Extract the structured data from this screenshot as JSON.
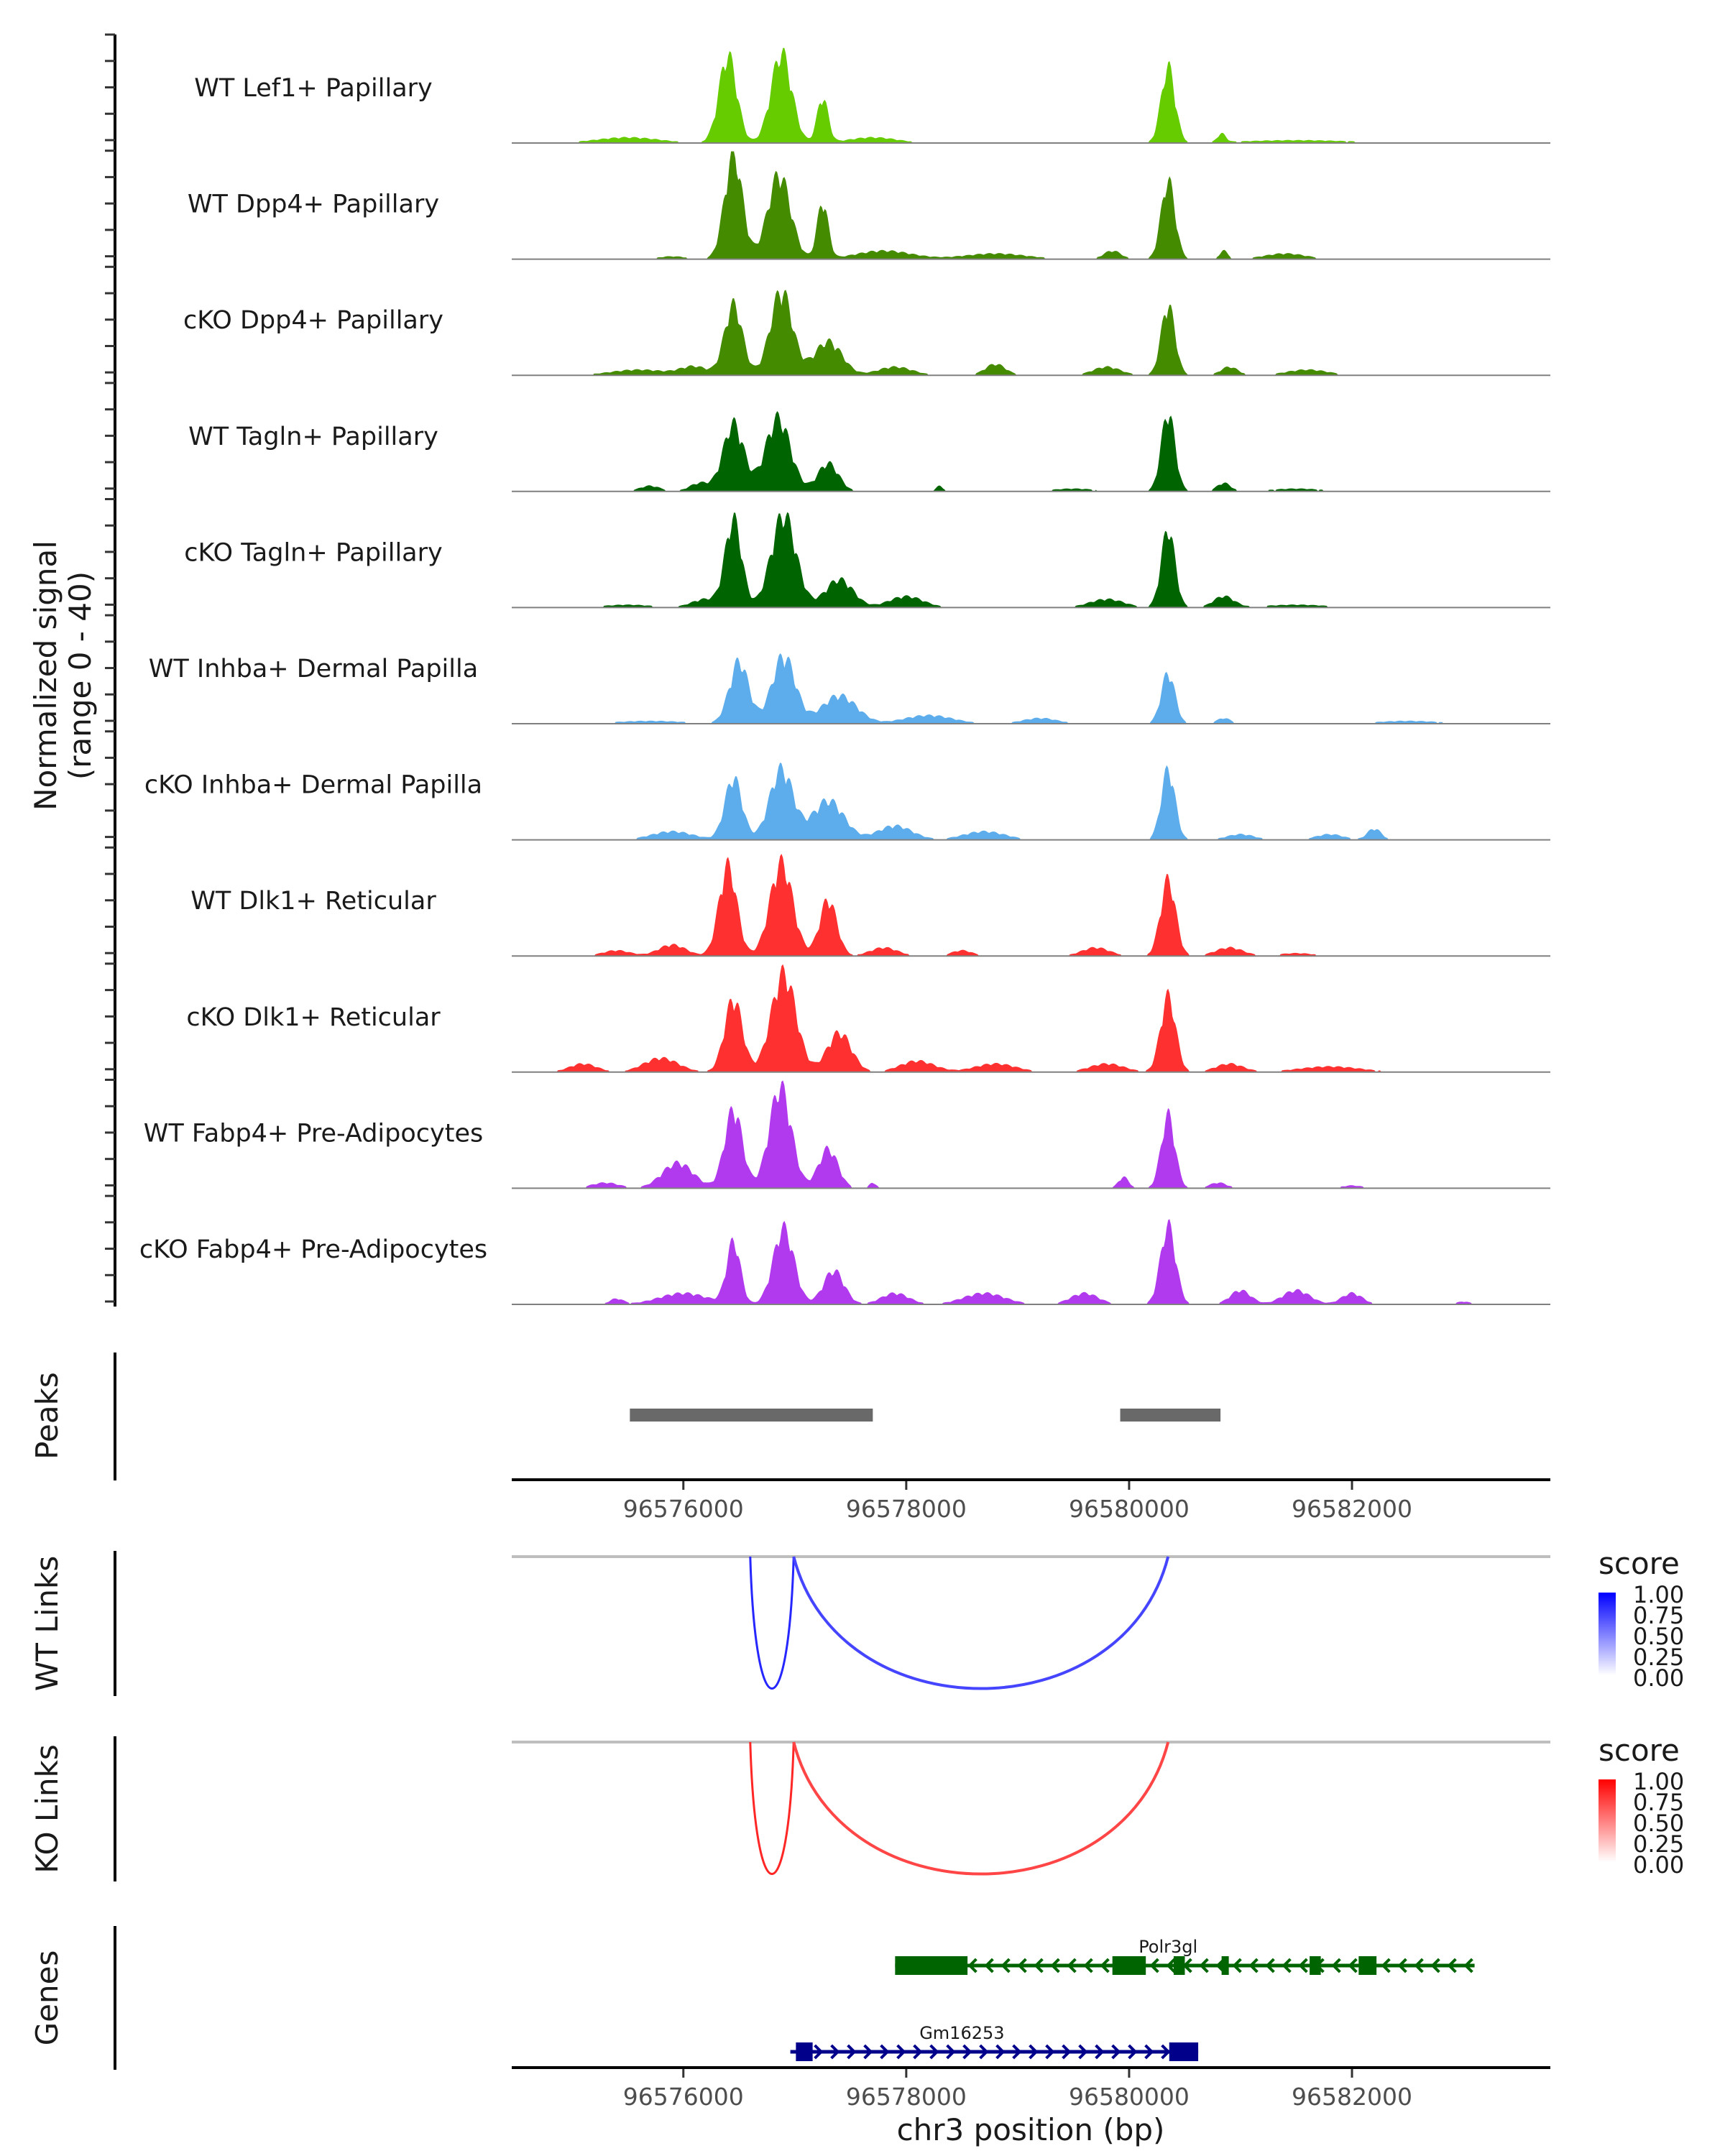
{
  "chart_data": {
    "type": "area",
    "title": "",
    "region": {
      "chrom": "chr3",
      "start": 96574460,
      "end": 96583780
    },
    "ylabel_line1": "Normalized signal",
    "ylabel_line2": "(range 0 - 40)",
    "ylim": [
      0,
      40
    ],
    "xlabel": "chr3 position (bp)",
    "x_ticks": [
      96576000,
      96578000,
      96580000,
      96582000
    ],
    "x_tick_labels": [
      "96576000",
      "96578000",
      "96580000",
      "96582000"
    ],
    "tracks": [
      {
        "name": "WT Lef1+ Papillary",
        "color": "#66CC00",
        "peaks": [
          [
            96575500,
            2,
            900
          ],
          [
            96576400,
            31,
            260
          ],
          [
            96576880,
            32,
            300
          ],
          [
            96577250,
            16,
            160
          ],
          [
            96577700,
            2,
            700
          ],
          [
            96580350,
            27,
            200
          ],
          [
            96580830,
            3,
            120
          ],
          [
            96581500,
            1,
            1600
          ]
        ]
      },
      {
        "name": "WT Dpp4+ Papillary",
        "color": "#458B00",
        "peaks": [
          [
            96575900,
            1,
            400
          ],
          [
            96576450,
            37,
            260
          ],
          [
            96576860,
            30,
            330
          ],
          [
            96577250,
            20,
            160
          ],
          [
            96577800,
            3,
            800
          ],
          [
            96578800,
            2,
            900
          ],
          [
            96579850,
            3,
            250
          ],
          [
            96580350,
            28,
            200
          ],
          [
            96580850,
            3,
            120
          ],
          [
            96581400,
            2,
            600
          ]
        ]
      },
      {
        "name": "cKO Dpp4+ Papillary",
        "color": "#458B00",
        "peaks": [
          [
            96575600,
            2,
            800
          ],
          [
            96576100,
            3,
            400
          ],
          [
            96576450,
            25,
            260
          ],
          [
            96576880,
            30,
            320
          ],
          [
            96577300,
            12,
            400
          ],
          [
            96577900,
            3,
            500
          ],
          [
            96578800,
            4,
            300
          ],
          [
            96579800,
            3,
            400
          ],
          [
            96580350,
            25,
            200
          ],
          [
            96580900,
            3,
            250
          ],
          [
            96581600,
            2,
            600
          ]
        ]
      },
      {
        "name": "WT Tagln+ Papillary",
        "color": "#006400",
        "peaks": [
          [
            96575700,
            2,
            300
          ],
          [
            96576150,
            3,
            300
          ],
          [
            96576450,
            24,
            300
          ],
          [
            96576850,
            26,
            360
          ],
          [
            96577300,
            10,
            300
          ],
          [
            96578300,
            2,
            100
          ],
          [
            96579500,
            1,
            600
          ],
          [
            96580350,
            28,
            200
          ],
          [
            96580850,
            3,
            200
          ],
          [
            96581500,
            1,
            700
          ]
        ]
      },
      {
        "name": "cKO Tagln+ Papillary",
        "color": "#006400",
        "peaks": [
          [
            96575500,
            1,
            700
          ],
          [
            96576200,
            3,
            400
          ],
          [
            96576450,
            31,
            240
          ],
          [
            96576900,
            33,
            360
          ],
          [
            96577400,
            10,
            400
          ],
          [
            96578000,
            4,
            500
          ],
          [
            96579800,
            3,
            500
          ],
          [
            96580350,
            28,
            200
          ],
          [
            96580850,
            4,
            300
          ],
          [
            96581500,
            1,
            900
          ]
        ]
      },
      {
        "name": "WT Inhba+ Dermal Papilla",
        "color": "#5DADEC",
        "peaks": [
          [
            96575700,
            1,
            1000
          ],
          [
            96576500,
            22,
            280
          ],
          [
            96576900,
            24,
            340
          ],
          [
            96577400,
            10,
            500
          ],
          [
            96578200,
            3,
            700
          ],
          [
            96579200,
            2,
            500
          ],
          [
            96580350,
            18,
            200
          ],
          [
            96580850,
            2,
            200
          ],
          [
            96582500,
            1,
            900
          ]
        ]
      },
      {
        "name": "cKO Inhba+ Dermal Papilla",
        "color": "#5DADEC",
        "peaks": [
          [
            96575900,
            3,
            600
          ],
          [
            96576450,
            22,
            250
          ],
          [
            96576880,
            25,
            340
          ],
          [
            96577300,
            14,
            450
          ],
          [
            96577900,
            5,
            500
          ],
          [
            96578700,
            3,
            600
          ],
          [
            96580350,
            25,
            200
          ],
          [
            96581000,
            2,
            400
          ],
          [
            96581800,
            2,
            400
          ],
          [
            96582200,
            4,
            200
          ]
        ]
      },
      {
        "name": "WT Dlk1+ Reticular",
        "color": "#FF3030",
        "peaks": [
          [
            96575400,
            2,
            400
          ],
          [
            96575900,
            4,
            400
          ],
          [
            96576400,
            32,
            260
          ],
          [
            96576880,
            33,
            330
          ],
          [
            96577300,
            20,
            250
          ],
          [
            96577800,
            3,
            400
          ],
          [
            96578500,
            2,
            300
          ],
          [
            96579700,
            3,
            400
          ],
          [
            96580350,
            27,
            220
          ],
          [
            96580900,
            3,
            400
          ],
          [
            96581500,
            1,
            500
          ]
        ]
      },
      {
        "name": "cKO Dlk1+ Reticular",
        "color": "#FF3030",
        "peaks": [
          [
            96575100,
            3,
            400
          ],
          [
            96575800,
            5,
            500
          ],
          [
            96576450,
            26,
            260
          ],
          [
            96576900,
            35,
            360
          ],
          [
            96577400,
            14,
            350
          ],
          [
            96578100,
            4,
            500
          ],
          [
            96578800,
            3,
            600
          ],
          [
            96579800,
            3,
            500
          ],
          [
            96580350,
            27,
            220
          ],
          [
            96580900,
            3,
            400
          ],
          [
            96581800,
            2,
            900
          ]
        ]
      },
      {
        "name": "WT Fabp4+ Pre-Adipocytes",
        "color": "#B23AEE",
        "peaks": [
          [
            96575300,
            2,
            400
          ],
          [
            96575950,
            9,
            450
          ],
          [
            96576450,
            28,
            260
          ],
          [
            96576870,
            36,
            320
          ],
          [
            96577300,
            14,
            280
          ],
          [
            96577700,
            2,
            100
          ],
          [
            96579950,
            4,
            150
          ],
          [
            96580350,
            26,
            200
          ],
          [
            96580800,
            2,
            250
          ],
          [
            96582000,
            1,
            300
          ]
        ]
      },
      {
        "name": "cKO Fabp4+ Pre-Adipocytes",
        "color": "#B23AEE",
        "peaks": [
          [
            96575400,
            2,
            200
          ],
          [
            96576000,
            4,
            700
          ],
          [
            96576450,
            22,
            200
          ],
          [
            96576900,
            27,
            300
          ],
          [
            96577350,
            12,
            300
          ],
          [
            96577900,
            4,
            400
          ],
          [
            96578700,
            4,
            600
          ],
          [
            96579600,
            4,
            400
          ],
          [
            96580350,
            28,
            220
          ],
          [
            96581000,
            5,
            300
          ],
          [
            96581500,
            5,
            400
          ],
          [
            96582000,
            4,
            300
          ],
          [
            96583000,
            1,
            200
          ]
        ]
      }
    ],
    "peaks_track": {
      "label": "Peaks",
      "color": "#696969",
      "ranges": [
        [
          96575520,
          96577700
        ],
        [
          96579920,
          96580820
        ]
      ]
    },
    "links": [
      {
        "label": "WT Links",
        "legend_title": "score",
        "legend_colors": [
          "#ffffff",
          "#0000FF"
        ],
        "legend_ticks": [
          "1.00",
          "0.75",
          "0.50",
          "0.25",
          "0.00"
        ],
        "arcs": [
          {
            "start": 96576600,
            "end": 96576990,
            "score": 0.75
          },
          {
            "start": 96576990,
            "end": 96580350,
            "score": 0.45
          }
        ]
      },
      {
        "label": "KO Links",
        "legend_title": "score",
        "legend_colors": [
          "#ffffff",
          "#FF0000"
        ],
        "legend_ticks": [
          "1.00",
          "0.75",
          "0.50",
          "0.25",
          "0.00"
        ],
        "arcs": [
          {
            "start": 96576600,
            "end": 96576990,
            "score": 0.75
          },
          {
            "start": 96576990,
            "end": 96580350,
            "score": 0.45
          }
        ]
      }
    ],
    "genes_track": {
      "label": "Genes",
      "genes": [
        {
          "name": "Polr3gl",
          "strand": "-",
          "color": "#006400",
          "start": 96577900,
          "end": 96583100,
          "exons": [
            [
              96577900,
              96578550
            ],
            [
              96579850,
              96580150
            ],
            [
              96580400,
              96580500
            ],
            [
              96580830,
              96580880
            ],
            [
              96581620,
              96581720
            ],
            [
              96582060,
              96582220
            ]
          ],
          "utr": [
            [
              96577900,
              96578550
            ]
          ]
        },
        {
          "name": "Gm16253",
          "strand": "+",
          "color": "#00008B",
          "start": 96576960,
          "end": 96580620,
          "exons": [
            [
              96577010,
              96577160
            ],
            [
              96580360,
              96580620
            ]
          ]
        }
      ]
    }
  }
}
